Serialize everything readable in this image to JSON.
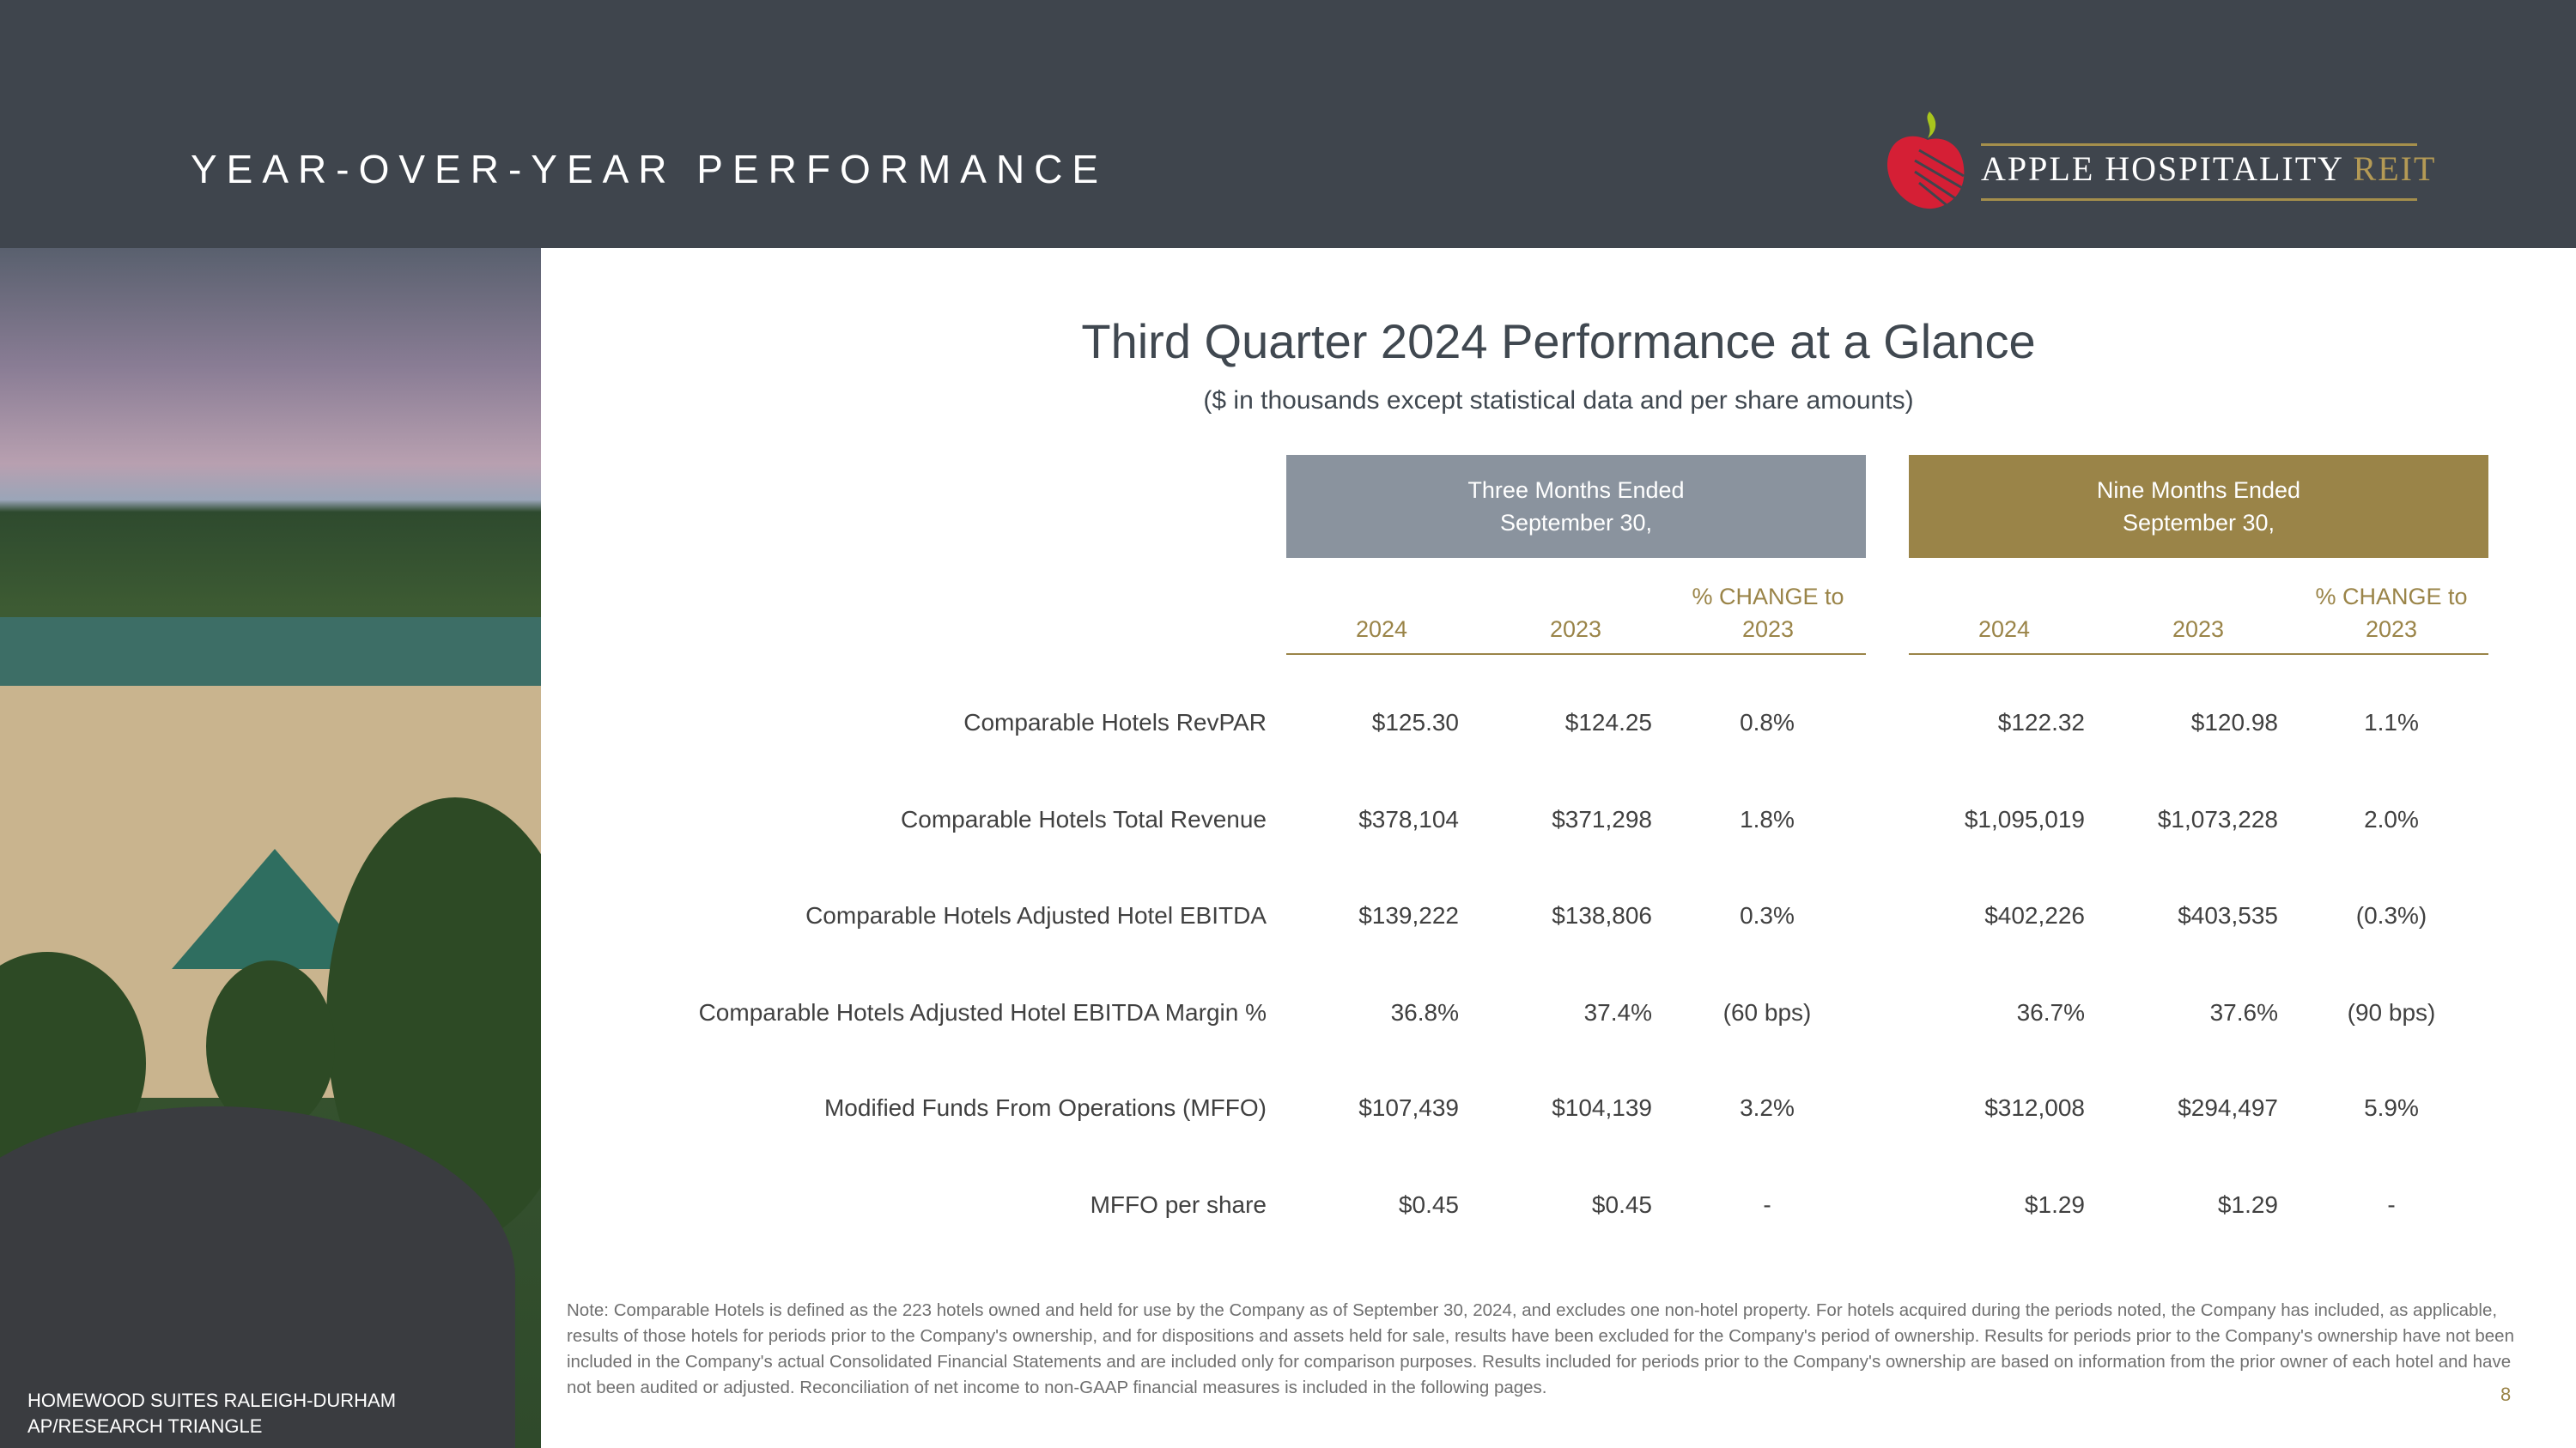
{
  "header": {
    "title": "YEAR-OVER-YEAR PERFORMANCE",
    "logo_text": "APPLE HOSPITALITY",
    "logo_accent": "REIT"
  },
  "photo": {
    "caption_line1": "HOMEWOOD SUITES RALEIGH-DURHAM",
    "caption_line2": "AP/RESEARCH TRIANGLE"
  },
  "main": {
    "title": "Third Quarter 2024 Performance at a Glance",
    "subtitle": "($ in thousands except statistical data and per share amounts)"
  },
  "groups": [
    {
      "line1": "Three Months Ended",
      "line2": "September 30,",
      "cols": [
        "2024",
        "2023"
      ],
      "chg1": "% CHANGE to",
      "chg2": "2023"
    },
    {
      "line1": "Nine Months Ended",
      "line2": "September 30,",
      "cols": [
        "2024",
        "2023"
      ],
      "chg1": "% CHANGE to",
      "chg2": "2023"
    }
  ],
  "rows": [
    {
      "label": "Comparable Hotels RevPAR",
      "v": [
        "$125.30",
        "$124.25",
        "0.8%",
        "$122.32",
        "$120.98",
        "1.1%"
      ]
    },
    {
      "label": "Comparable Hotels Total Revenue",
      "v": [
        "$378,104",
        "$371,298",
        "1.8%",
        "$1,095,019",
        "$1,073,228",
        "2.0%"
      ]
    },
    {
      "label": "Comparable Hotels Adjusted Hotel EBITDA",
      "v": [
        "$139,222",
        "$138,806",
        "0.3%",
        "$402,226",
        "$403,535",
        "(0.3%)"
      ]
    },
    {
      "label": "Comparable Hotels Adjusted Hotel EBITDA Margin %",
      "v": [
        "36.8%",
        "37.4%",
        "(60 bps)",
        "36.7%",
        "37.6%",
        "(90 bps)"
      ]
    },
    {
      "label": "Modified Funds From Operations (MFFO)",
      "v": [
        "$107,439",
        "$104,139",
        "3.2%",
        "$312,008",
        "$294,497",
        "5.9%"
      ]
    },
    {
      "label": "MFFO per share",
      "v": [
        "$0.45",
        "$0.45",
        "-",
        "$1.29",
        "$1.29",
        "-"
      ]
    }
  ],
  "note": "Note:  Comparable Hotels is defined as the 223 hotels owned and held for use by the Company as of September 30, 2024, and excludes one non-hotel property. For hotels acquired during the periods noted, the Company has included, as applicable, results of those hotels for periods prior to the Company's ownership, and for dispositions and assets held for sale, results have been excluded for the Company's period of ownership. Results for periods prior to the Company's ownership have not been included in the Company's actual Consolidated Financial Statements and are included only for comparison purposes. Results included for periods prior to the Company's ownership are based on information from the prior owner of each hotel and have not been audited or adjusted. Reconciliation of net income to non-GAAP financial measures is included in the following pages.",
  "page_number": "8",
  "colors": {
    "header": "#3f454d",
    "three_months": "#8a939e",
    "nine_months": "#9a8448"
  }
}
